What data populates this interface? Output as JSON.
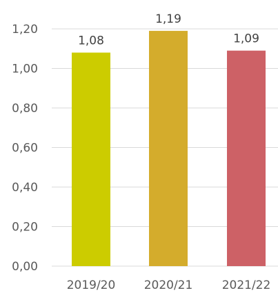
{
  "chart_data": {
    "type": "bar",
    "categories": [
      "2019/20",
      "2020/21",
      "2021/22"
    ],
    "values": [
      1.08,
      1.19,
      1.09
    ],
    "data_labels": [
      "1,08",
      "1,19",
      "1,09"
    ],
    "bar_colors": [
      "#cccc00",
      "#d4ac2c",
      "#cd6166"
    ],
    "ylim": [
      0,
      1.2
    ],
    "yticks": [
      {
        "value": 0.0,
        "label": "0,00"
      },
      {
        "value": 0.2,
        "label": "0,20"
      },
      {
        "value": 0.4,
        "label": "0,40"
      },
      {
        "value": 0.6,
        "label": "0,60"
      },
      {
        "value": 0.8,
        "label": "0,80"
      },
      {
        "value": 1.0,
        "label": "1,00"
      },
      {
        "value": 1.2,
        "label": "1,20"
      }
    ],
    "grid": true,
    "legend": "none"
  }
}
